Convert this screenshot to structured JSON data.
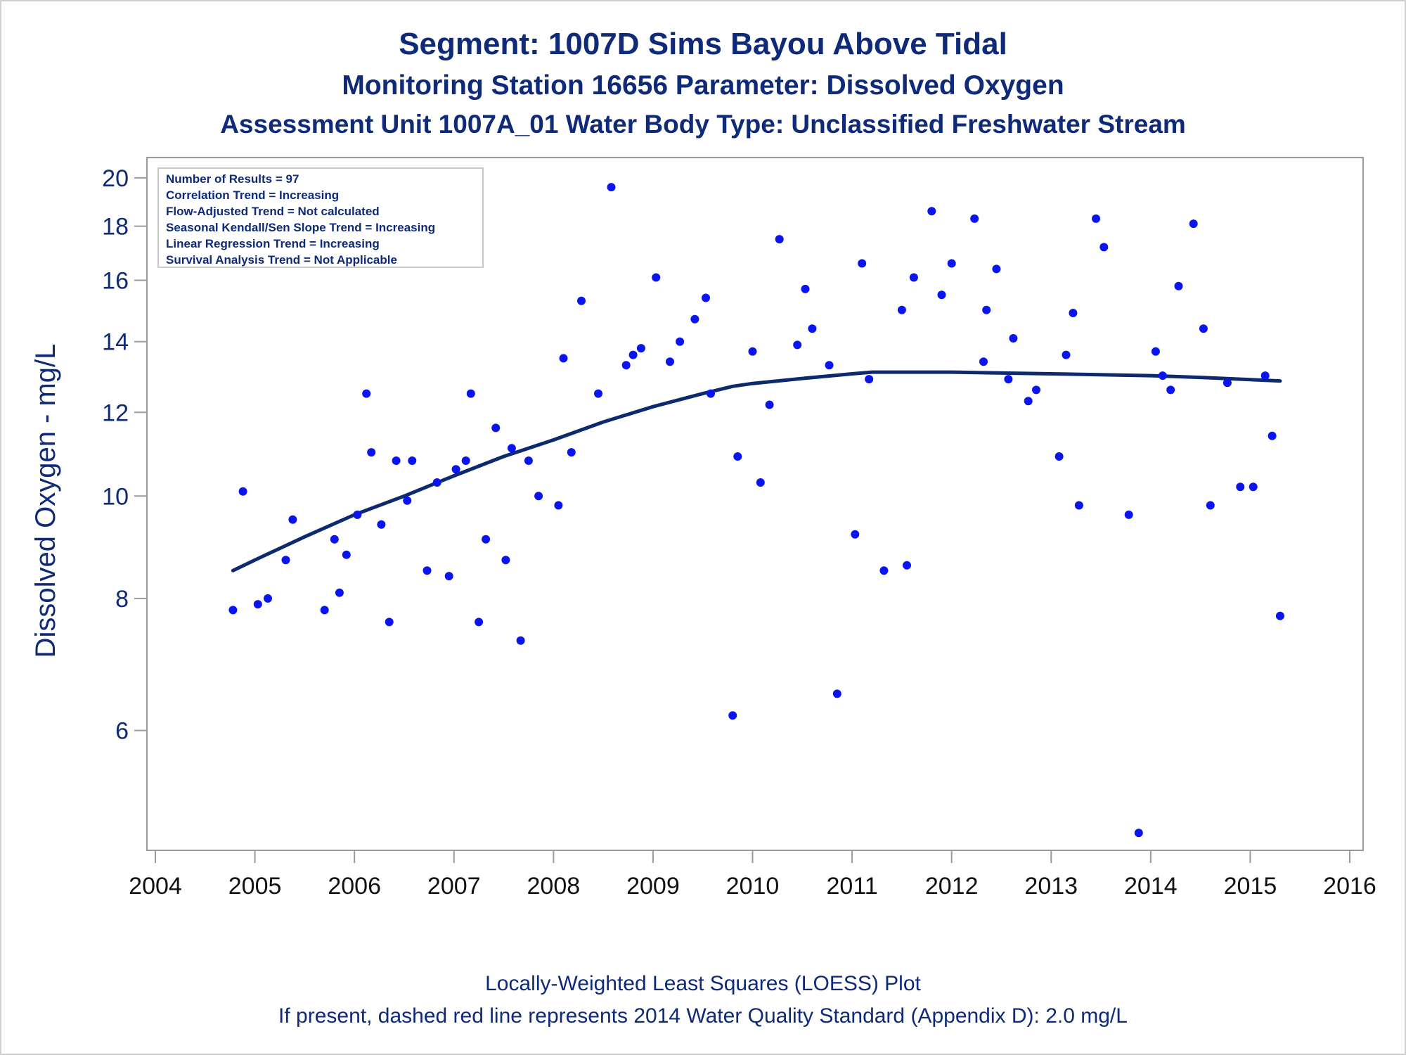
{
  "titles": {
    "line1": "Segment: 1007D  Sims Bayou Above Tidal",
    "line2": "Monitoring Station 16656 Parameter: Dissolved Oxygen",
    "line3": "Assessment Unit 1007A_01   Water Body Type: Unclassified Freshwater Stream"
  },
  "footnotes": {
    "line1": "Locally-Weighted Least Squares (LOESS) Plot",
    "line2": "If present, dashed red line represents 2014 Water Quality Standard (Appendix D): 2.0 mg/L"
  },
  "info_box": [
    "Number of Results = 97",
    "Correlation Trend = Increasing",
    "Flow-Adjusted Trend = Not calculated",
    "Seasonal Kendall/Sen Slope Trend = Increasing",
    "Linear Regression Trend = Increasing",
    "Survival Analysis Trend = Not Applicable"
  ],
  "colors": {
    "text": "#0e2a78",
    "points": "#0a14f0",
    "loess": "#0d2a6e",
    "axis": "#9a9a9a"
  },
  "chart_data": {
    "type": "scatter",
    "xlabel": "",
    "ylabel": "Dissolved Oxygen - mg/L",
    "y_scale": "log",
    "xlim": [
      2004,
      2016
    ],
    "ylim": [
      4.7,
      20.4
    ],
    "x_ticks": [
      2004,
      2005,
      2006,
      2007,
      2008,
      2009,
      2010,
      2011,
      2012,
      2013,
      2014,
      2015,
      2016
    ],
    "y_ticks": [
      6,
      8,
      10,
      12,
      14,
      16,
      18,
      20
    ],
    "legend": "none",
    "grid": false,
    "points": [
      [
        2004.78,
        7.8
      ],
      [
        2004.88,
        10.1
      ],
      [
        2005.03,
        7.9
      ],
      [
        2005.13,
        8.0
      ],
      [
        2005.31,
        8.7
      ],
      [
        2005.38,
        9.5
      ],
      [
        2005.7,
        7.8
      ],
      [
        2005.8,
        9.1
      ],
      [
        2005.85,
        8.1
      ],
      [
        2005.92,
        8.8
      ],
      [
        2006.03,
        9.6
      ],
      [
        2006.12,
        12.5
      ],
      [
        2006.17,
        11.0
      ],
      [
        2006.27,
        9.4
      ],
      [
        2006.35,
        7.6
      ],
      [
        2006.42,
        10.8
      ],
      [
        2006.53,
        9.9
      ],
      [
        2006.58,
        10.8
      ],
      [
        2006.73,
        8.5
      ],
      [
        2006.83,
        10.3
      ],
      [
        2006.95,
        8.4
      ],
      [
        2007.02,
        10.6
      ],
      [
        2007.12,
        10.8
      ],
      [
        2007.17,
        12.5
      ],
      [
        2007.25,
        7.6
      ],
      [
        2007.32,
        9.1
      ],
      [
        2007.42,
        11.6
      ],
      [
        2007.52,
        8.7
      ],
      [
        2007.58,
        11.1
      ],
      [
        2007.67,
        7.3
      ],
      [
        2007.75,
        10.8
      ],
      [
        2007.85,
        10.0
      ],
      [
        2008.05,
        9.8
      ],
      [
        2008.1,
        13.5
      ],
      [
        2008.18,
        11.0
      ],
      [
        2008.28,
        15.3
      ],
      [
        2008.45,
        12.5
      ],
      [
        2008.58,
        19.6
      ],
      [
        2008.73,
        13.3
      ],
      [
        2008.8,
        13.6
      ],
      [
        2008.88,
        13.8
      ],
      [
        2009.03,
        16.1
      ],
      [
        2009.17,
        13.4
      ],
      [
        2009.27,
        14.0
      ],
      [
        2009.42,
        14.7
      ],
      [
        2009.53,
        15.4
      ],
      [
        2009.58,
        12.5
      ],
      [
        2009.8,
        6.2
      ],
      [
        2009.85,
        10.9
      ],
      [
        2010.0,
        13.7
      ],
      [
        2010.08,
        10.3
      ],
      [
        2010.17,
        12.2
      ],
      [
        2010.27,
        17.5
      ],
      [
        2010.45,
        13.9
      ],
      [
        2010.53,
        15.7
      ],
      [
        2010.6,
        14.4
      ],
      [
        2010.77,
        13.3
      ],
      [
        2010.85,
        6.5
      ],
      [
        2011.03,
        9.2
      ],
      [
        2011.1,
        16.6
      ],
      [
        2011.17,
        12.9
      ],
      [
        2011.32,
        8.5
      ],
      [
        2011.5,
        15.0
      ],
      [
        2011.55,
        8.6
      ],
      [
        2011.62,
        16.1
      ],
      [
        2011.8,
        18.6
      ],
      [
        2011.9,
        15.5
      ],
      [
        2012.0,
        16.6
      ],
      [
        2012.23,
        18.3
      ],
      [
        2012.32,
        13.4
      ],
      [
        2012.35,
        15.0
      ],
      [
        2012.45,
        16.4
      ],
      [
        2012.57,
        12.9
      ],
      [
        2012.62,
        14.1
      ],
      [
        2012.77,
        12.3
      ],
      [
        2012.85,
        12.6
      ],
      [
        2013.08,
        10.9
      ],
      [
        2013.15,
        13.6
      ],
      [
        2013.22,
        14.9
      ],
      [
        2013.28,
        9.8
      ],
      [
        2013.45,
        18.3
      ],
      [
        2013.53,
        17.2
      ],
      [
        2013.78,
        9.6
      ],
      [
        2013.88,
        4.8
      ],
      [
        2014.05,
        13.7
      ],
      [
        2014.12,
        13.0
      ],
      [
        2014.2,
        12.6
      ],
      [
        2014.28,
        15.8
      ],
      [
        2014.43,
        18.1
      ],
      [
        2014.53,
        14.4
      ],
      [
        2014.6,
        9.8
      ],
      [
        2014.77,
        12.8
      ],
      [
        2014.9,
        10.2
      ],
      [
        2015.03,
        10.2
      ],
      [
        2015.15,
        13.0
      ],
      [
        2015.22,
        11.4
      ],
      [
        2015.3,
        7.7
      ]
    ],
    "loess": [
      [
        2004.78,
        8.5
      ],
      [
        2005.0,
        8.7
      ],
      [
        2005.5,
        9.15
      ],
      [
        2006.0,
        9.6
      ],
      [
        2006.5,
        10.0
      ],
      [
        2007.0,
        10.45
      ],
      [
        2007.5,
        10.9
      ],
      [
        2008.0,
        11.3
      ],
      [
        2008.5,
        11.75
      ],
      [
        2009.0,
        12.15
      ],
      [
        2009.5,
        12.5
      ],
      [
        2009.8,
        12.7
      ],
      [
        2010.0,
        12.78
      ],
      [
        2010.5,
        12.92
      ],
      [
        2011.0,
        13.05
      ],
      [
        2011.2,
        13.1
      ],
      [
        2012.0,
        13.1
      ],
      [
        2013.0,
        13.05
      ],
      [
        2014.0,
        13.0
      ],
      [
        2014.5,
        12.95
      ],
      [
        2015.3,
        12.85
      ]
    ]
  }
}
